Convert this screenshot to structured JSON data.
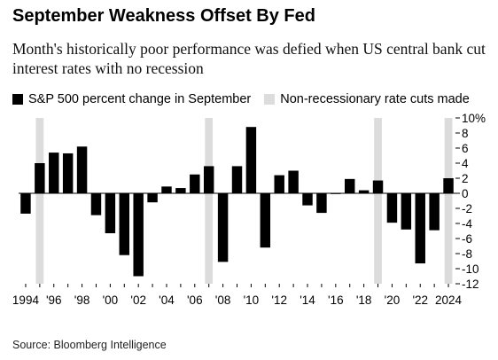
{
  "title": "September Weakness Offset By Fed",
  "subtitle": "Month's historically poor performance was defied when US central bank cut interest rates with no recession",
  "legend": {
    "series_label": "S&P 500 percent change in September",
    "shade_label": "Non-recessionary rate cuts made"
  },
  "source": "Source: Bloomberg Intelligence",
  "colors": {
    "bar": "#000000",
    "shade": "#dcdcdc"
  },
  "chart_data": {
    "type": "bar",
    "x": [
      1994,
      1995,
      1996,
      1997,
      1998,
      1999,
      2000,
      2001,
      2002,
      2003,
      2004,
      2005,
      2006,
      2007,
      2008,
      2009,
      2010,
      2011,
      2012,
      2013,
      2014,
      2015,
      2016,
      2017,
      2018,
      2019,
      2020,
      2021,
      2022,
      2023,
      2024
    ],
    "series": [
      {
        "name": "S&P 500 percent change in September",
        "values": [
          -2.7,
          4.0,
          5.4,
          5.3,
          6.2,
          -2.9,
          -5.3,
          -8.2,
          -11.0,
          -1.2,
          0.9,
          0.7,
          2.5,
          3.6,
          -9.1,
          3.6,
          8.8,
          -7.2,
          2.4,
          3.0,
          -1.6,
          -2.6,
          -0.1,
          1.9,
          0.4,
          1.7,
          -3.9,
          -4.8,
          -9.3,
          -4.9,
          2.0
        ]
      }
    ],
    "shaded_years": [
      1995,
      2007,
      2019,
      2024
    ],
    "shaded_label": "Non-recessionary rate cuts made",
    "xtick_labels": [
      "1994",
      "'96",
      "'98",
      "'00",
      "'02",
      "'04",
      "'06",
      "'08",
      "'10",
      "'12",
      "'14",
      "'16",
      "'18",
      "'20",
      "'22",
      "2024"
    ],
    "xtick_years": [
      1994,
      1996,
      1998,
      2000,
      2002,
      2004,
      2006,
      2008,
      2010,
      2012,
      2014,
      2016,
      2018,
      2020,
      2022,
      2024
    ],
    "ytick_labels": [
      "10%",
      "8",
      "6",
      "4",
      "2",
      "0",
      "-2",
      "-4",
      "-6",
      "-8",
      "-10",
      "-12"
    ],
    "ytick_values": [
      10,
      8,
      6,
      4,
      2,
      0,
      -2,
      -4,
      -6,
      -8,
      -10,
      -12
    ],
    "ylim": [
      -12,
      10
    ],
    "xlabel": "",
    "ylabel": "",
    "legend_position": "top-left"
  }
}
